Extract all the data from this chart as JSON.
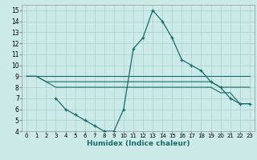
{
  "title": "",
  "xlabel": "Humidex (Indice chaleur)",
  "ylabel": "",
  "bg_color": "#cceae8",
  "grid_color": "#aad4d0",
  "line_color": "#1a6b6b",
  "xlim": [
    -0.5,
    23.5
  ],
  "ylim": [
    4,
    15.5
  ],
  "xticks": [
    0,
    1,
    2,
    3,
    4,
    5,
    6,
    7,
    8,
    9,
    10,
    11,
    12,
    13,
    14,
    15,
    16,
    17,
    18,
    19,
    20,
    21,
    22,
    23
  ],
  "yticks": [
    4,
    5,
    6,
    7,
    8,
    9,
    10,
    11,
    12,
    13,
    14,
    15
  ],
  "series": [
    {
      "x": [
        0,
        1,
        2,
        3,
        4,
        5,
        6,
        7,
        8,
        9,
        10,
        11,
        12,
        13,
        14,
        15,
        16,
        17,
        18,
        19,
        20,
        21,
        22,
        23
      ],
      "y": [
        9,
        9,
        9,
        9,
        9,
        9,
        9,
        9,
        9,
        9,
        9,
        9,
        9,
        9,
        9,
        9,
        9,
        9,
        9,
        9,
        9,
        9,
        9,
        9
      ],
      "has_markers": false
    },
    {
      "x": [
        0,
        1,
        2,
        3,
        4,
        5,
        6,
        7,
        8,
        9,
        10,
        11,
        12,
        13,
        14,
        15,
        16,
        17,
        18,
        19,
        20,
        21,
        22,
        23
      ],
      "y": [
        9,
        9,
        8.5,
        8.5,
        8.5,
        8.5,
        8.5,
        8.5,
        8.5,
        8.5,
        8.5,
        8.5,
        8.5,
        8.5,
        8.5,
        8.5,
        8.5,
        8.5,
        8.5,
        8.5,
        8,
        8,
        8,
        8
      ],
      "has_markers": false
    },
    {
      "x": [
        0,
        1,
        2,
        3,
        4,
        5,
        6,
        7,
        8,
        9,
        10,
        11,
        12,
        13,
        14,
        15,
        16,
        17,
        18,
        19,
        20,
        21,
        22,
        23
      ],
      "y": [
        9,
        9,
        8.5,
        8,
        8,
        8,
        8,
        8,
        8,
        8,
        8,
        8,
        8,
        8,
        8,
        8,
        8,
        8,
        8,
        8,
        7.5,
        7.5,
        6.5,
        6.5
      ],
      "has_markers": false
    },
    {
      "x": [
        3,
        4,
        5,
        6,
        7,
        8,
        9,
        10,
        11,
        12,
        13,
        14,
        15,
        16,
        17,
        18,
        19,
        20,
        21,
        22,
        23
      ],
      "y": [
        7,
        6,
        5.5,
        5,
        4.5,
        4,
        4,
        6,
        11.5,
        12.5,
        15,
        14,
        12.5,
        10.5,
        10,
        9.5,
        8.5,
        8,
        7,
        6.5,
        6.5
      ],
      "has_markers": true
    }
  ]
}
